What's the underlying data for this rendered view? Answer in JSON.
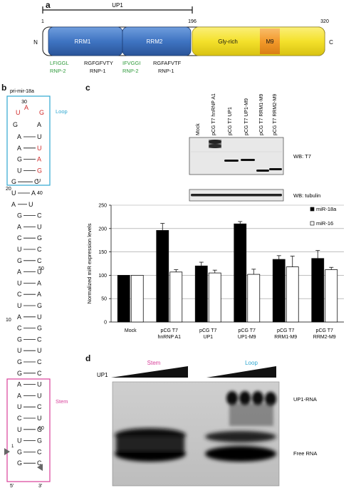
{
  "panel_labels": {
    "a": "a",
    "b": "b",
    "c": "c",
    "d": "d"
  },
  "panel_a": {
    "span_label": "UP1",
    "positions": {
      "start": "1",
      "mid": "196",
      "end": "320"
    },
    "n_label": "N",
    "c_label": "C",
    "domains": {
      "rrm1": "RRM1",
      "rrm2": "RRM2",
      "gly": "Gly-rich",
      "m9": "M9"
    },
    "motifs_rrm1": {
      "rnp2_seq": "LFIGGL",
      "rnp1_seq": "RGFGFVTY",
      "rnp2_name": "RNP-2",
      "rnp1_name": "RNP-1"
    },
    "motifs_rrm2": {
      "rnp2_seq": "IFVGGI",
      "rnp1_seq": "RGFAFVTF",
      "rnp2_name": "RNP-2",
      "rnp1_name": "RNP-1"
    },
    "colors": {
      "rrm": "#3f74c2",
      "gly": "#f4e12b",
      "m9": "#f39a2b",
      "rnp2": "#2e9a3a",
      "rnp1": "#111111"
    }
  },
  "panel_b": {
    "title": "pri-mir-18a",
    "loop_label": "Loop",
    "stem_label": "Stem",
    "numbers": {
      "n30": "30",
      "n40": "40",
      "n20": "20",
      "n50": "50",
      "n10": "10",
      "n60": "60",
      "n1": "1"
    },
    "ends": {
      "five": "5′",
      "three": "3′"
    },
    "loop_colors": {
      "box": "#2ea7d0",
      "label": "#2ea7d0"
    },
    "stem_colors": {
      "box": "#d8409a",
      "label": "#d8409a"
    },
    "highlight_color": "#d02a2a",
    "loop_nts": [
      {
        "t": "U",
        "hl": true
      },
      {
        "t": "A",
        "hl": true
      },
      {
        "t": "G",
        "hl": true
      },
      {
        "t": "G",
        "hl": false
      },
      {
        "t": "A",
        "hl": false
      }
    ],
    "pairs": [
      {
        "l": "A",
        "r": "U",
        "rhl": false
      },
      {
        "l": "A",
        "r": "U",
        "rhl": true
      },
      {
        "l": "G",
        "r": "A",
        "rhl": true
      },
      {
        "l": "U",
        "r": "G",
        "rhl": true
      },
      {
        "l": "G",
        "r": "C",
        "rhl": false
      },
      {
        "l": "U",
        "r": "A",
        "rhl": false
      },
      {
        "l": "A",
        "r": "U",
        "rhl": false
      },
      {
        "l": "G",
        "r": "C",
        "rhl": false
      },
      {
        "l": "A",
        "r": "U",
        "rhl": false
      },
      {
        "l": "C",
        "r": "G",
        "rhl": false
      },
      {
        "l": "U",
        "r": "C",
        "rhl": false
      },
      {
        "l": "G",
        "r": "C",
        "rhl": false
      },
      {
        "l": "A",
        "r": "U",
        "rhl": false
      },
      {
        "l": "U",
        "r": "A",
        "rhl": false
      },
      {
        "l": "C",
        "r": "A",
        "rhl": false
      },
      {
        "l": "U",
        "r": "G",
        "rhl": false
      },
      {
        "l": "A",
        "r": "U",
        "rhl": false
      },
      {
        "l": "C",
        "r": "G",
        "rhl": false
      },
      {
        "l": "G",
        "r": "C",
        "rhl": false
      },
      {
        "l": "U",
        "r": "U",
        "rhl": false
      },
      {
        "l": "G",
        "r": "C",
        "rhl": false
      },
      {
        "l": "G",
        "r": "C",
        "rhl": false
      },
      {
        "l": "A",
        "r": "U",
        "rhl": false
      },
      {
        "l": "A",
        "r": "U",
        "rhl": false
      },
      {
        "l": "U",
        "r": "C",
        "rhl": false
      },
      {
        "l": "C",
        "r": "U",
        "rhl": false
      },
      {
        "l": "U",
        "r": "G",
        "rhl": false
      },
      {
        "l": "U",
        "r": "G",
        "rhl": false
      },
      {
        "l": "G",
        "r": "C",
        "rhl": false
      },
      {
        "l": "G",
        "r": "C",
        "rhl": false
      }
    ],
    "bulge_right": "U"
  },
  "panel_c": {
    "blot_lanes": [
      "Mock",
      "pCG T7 hnRNP A1",
      "pCG T7 UP1",
      "pCG T7 UP1-M9",
      "pCG T7 RRM1-M9",
      "pCG T7 RRM2-M9"
    ],
    "wb_t7": "WB: T7",
    "wb_tubulin": "WB: tubulin"
  },
  "chart_data": {
    "type": "bar",
    "categories": [
      [
        "Mock"
      ],
      [
        "pCG T7",
        "hnRNP A1"
      ],
      [
        "pCG T7",
        "UP1"
      ],
      [
        "pCG T7",
        "UP1-M9"
      ],
      [
        "pCG T7",
        "RRM1-M9"
      ],
      [
        "pCG T7",
        "RRM2-M9"
      ]
    ],
    "series": [
      {
        "name": "miR-18a",
        "values": [
          100,
          196,
          120,
          210,
          134,
          136
        ],
        "errors": [
          0,
          15,
          8,
          5,
          8,
          17
        ],
        "color": "#000000"
      },
      {
        "name": "miR-16",
        "values": [
          100,
          107,
          105,
          102,
          118,
          112
        ],
        "errors": [
          0,
          5,
          6,
          11,
          23,
          5
        ],
        "color": "#ffffff"
      }
    ],
    "ylabel": "Normalized miR expression levels",
    "ylim": [
      0,
      250
    ],
    "yticks": [
      "0",
      "50",
      "100",
      "150",
      "200",
      "250"
    ],
    "grid": true,
    "legend": "top-right"
  },
  "panel_d": {
    "stem_label": "Stem",
    "loop_label": "Loop",
    "up1_label": "UP1",
    "complex_label": "UP1-RNA",
    "free_label": "Free RNA",
    "stem_color": "#d8409a",
    "loop_color": "#2ea7d0"
  }
}
